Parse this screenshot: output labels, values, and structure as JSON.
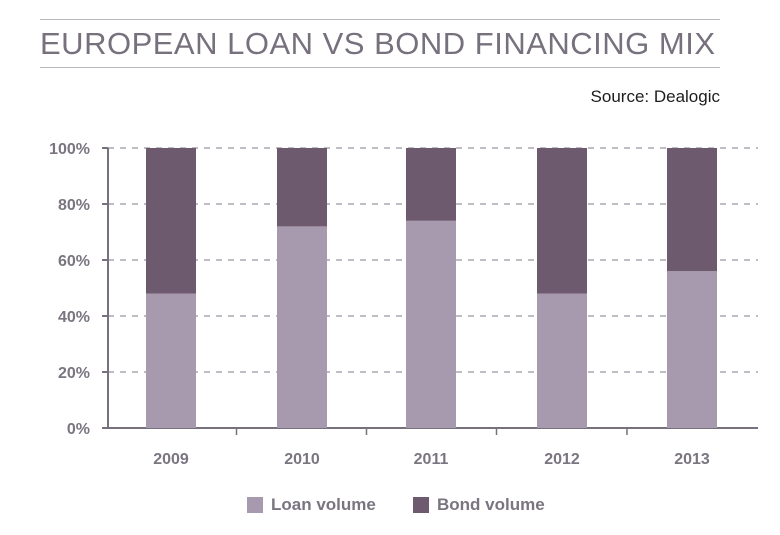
{
  "header": {
    "title": "EUROPEAN LOAN VS BOND FINANCING MIX",
    "source": "Source: Dealogic"
  },
  "colors": {
    "loan": "#a89aae",
    "bond": "#6e5a6e",
    "axis": "#77717e",
    "grid": "#9a94a0",
    "tick_label": "#7a7580"
  },
  "chart_data": {
    "type": "bar",
    "stacked": true,
    "categories": [
      "2009",
      "2010",
      "2011",
      "2012",
      "2013"
    ],
    "series": [
      {
        "name": "Loan volume",
        "values": [
          48,
          72,
          74,
          48,
          56
        ]
      },
      {
        "name": "Bond volume",
        "values": [
          52,
          28,
          26,
          52,
          44
        ]
      }
    ],
    "y_ticks": [
      "0%",
      "20%",
      "40%",
      "60%",
      "80%",
      "100%"
    ],
    "ylim": [
      0,
      100
    ],
    "grid": true,
    "legend_position": "bottom"
  }
}
